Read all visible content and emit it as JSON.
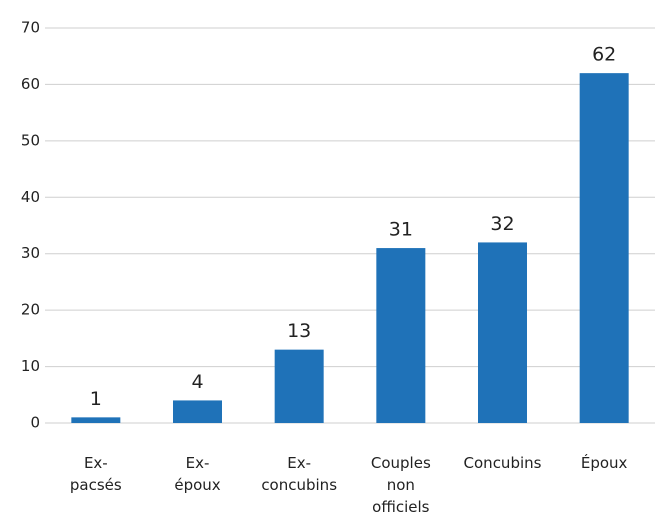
{
  "chart_data": {
    "type": "bar",
    "categories": [
      "Ex-pacsés",
      "Ex-époux",
      "Ex-concubins",
      "Couples non officiels",
      "Concubins",
      "Époux"
    ],
    "values": [
      1,
      4,
      13,
      31,
      32,
      62
    ],
    "color": "#1f72b8",
    "ylim": [
      0,
      70
    ],
    "yticks": [
      0,
      10,
      20,
      30,
      40,
      50,
      60,
      70
    ],
    "grid": true
  }
}
